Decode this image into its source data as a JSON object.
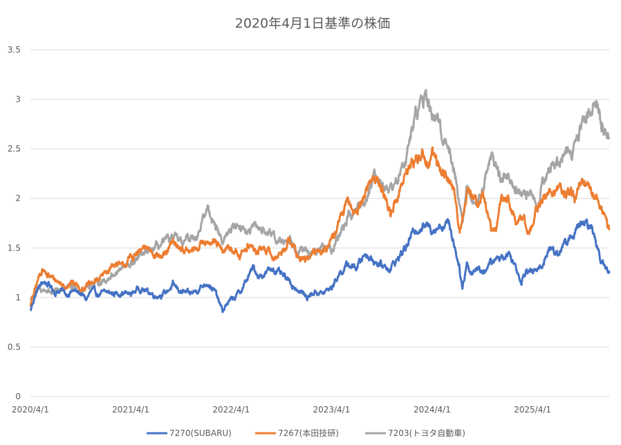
{
  "chart_data": {
    "type": "line",
    "title": "2020年4月1日基準の株価",
    "xlabel": "",
    "ylabel": "",
    "ylim": [
      0,
      3.5
    ],
    "y_ticks": [
      "0",
      "0.5",
      "1",
      "1.5",
      "2",
      "2.5",
      "3",
      "3.5"
    ],
    "x_ticks": [
      "2020/4/1",
      "2021/4/1",
      "2022/4/1",
      "2023/4/1",
      "2024/4/1",
      "2025/4/1"
    ],
    "x_range": [
      "2020/4/1",
      "2026/1/5"
    ],
    "grid": true,
    "legend": "bottom",
    "series": [
      {
        "name": "7270(SUBARU)",
        "color": "#4472c4",
        "points": [
          [
            "2020/4/1",
            0.86
          ],
          [
            "2020/4/15",
            1.0
          ],
          [
            "2020/5/1",
            1.1
          ],
          [
            "2020/5/20",
            1.16
          ],
          [
            "2020/6/10",
            1.12
          ],
          [
            "2020/7/1",
            1.05
          ],
          [
            "2020/7/20",
            1.08
          ],
          [
            "2020/8/10",
            1.03
          ],
          [
            "2020/9/1",
            1.07
          ],
          [
            "2020/10/1",
            1.04
          ],
          [
            "2020/10/20",
            0.98
          ],
          [
            "2020/11/10",
            1.07
          ],
          [
            "2020/12/1",
            1.03
          ],
          [
            "2021/1/5",
            1.05
          ],
          [
            "2021/2/1",
            1.04
          ],
          [
            "2021/3/1",
            1.05
          ],
          [
            "2021/4/1",
            1.03
          ],
          [
            "2021/5/1",
            1.1
          ],
          [
            "2021/6/1",
            1.06
          ],
          [
            "2021/7/1",
            1.02
          ],
          [
            "2021/8/1",
            1.04
          ],
          [
            "2021/9/1",
            1.12
          ],
          [
            "2021/10/1",
            1.06
          ],
          [
            "2021/11/1",
            1.03
          ],
          [
            "2021/12/1",
            1.08
          ],
          [
            "2022/1/5",
            1.16
          ],
          [
            "2022/2/1",
            1.06
          ],
          [
            "2022/3/1",
            0.86
          ],
          [
            "2022/3/20",
            0.95
          ],
          [
            "2022/4/15",
            1.0
          ],
          [
            "2022/5/10",
            1.08
          ],
          [
            "2022/6/1",
            1.2
          ],
          [
            "2022/6/20",
            1.3
          ],
          [
            "2022/7/10",
            1.22
          ],
          [
            "2022/8/1",
            1.24
          ],
          [
            "2022/9/1",
            1.3
          ],
          [
            "2022/9/20",
            1.25
          ],
          [
            "2022/10/10",
            1.2
          ],
          [
            "2022/11/1",
            1.15
          ],
          [
            "2022/11/20",
            1.1
          ],
          [
            "2022/12/10",
            1.06
          ],
          [
            "2023/1/1",
            1.0
          ],
          [
            "2023/2/1",
            1.06
          ],
          [
            "2023/3/1",
            1.04
          ],
          [
            "2023/4/1",
            1.1
          ],
          [
            "2023/5/1",
            1.25
          ],
          [
            "2023/6/1",
            1.33
          ],
          [
            "2023/7/1",
            1.3
          ],
          [
            "2023/8/1",
            1.45
          ],
          [
            "2023/9/1",
            1.38
          ],
          [
            "2023/10/1",
            1.32
          ],
          [
            "2023/11/1",
            1.3
          ],
          [
            "2023/12/1",
            1.4
          ],
          [
            "2024/1/5",
            1.55
          ],
          [
            "2024/2/1",
            1.7
          ],
          [
            "2024/3/1",
            1.72
          ],
          [
            "2024/4/1",
            1.7
          ],
          [
            "2024/5/1",
            1.73
          ],
          [
            "2024/6/1",
            1.75
          ],
          [
            "2024/6/20",
            1.55
          ],
          [
            "2024/7/10",
            1.3
          ],
          [
            "2024/7/20",
            1.1
          ],
          [
            "2024/8/5",
            1.35
          ],
          [
            "2024/8/20",
            1.25
          ],
          [
            "2024/9/10",
            1.3
          ],
          [
            "2024/10/1",
            1.26
          ],
          [
            "2024/11/1",
            1.35
          ],
          [
            "2024/12/1",
            1.4
          ],
          [
            "2025/1/5",
            1.45
          ],
          [
            "2025/2/1",
            1.3
          ],
          [
            "2025/2/20",
            1.17
          ],
          [
            "2025/3/10",
            1.3
          ],
          [
            "2025/4/1",
            1.25
          ],
          [
            "2025/5/1",
            1.3
          ],
          [
            "2025/6/1",
            1.5
          ],
          [
            "2025/7/1",
            1.45
          ],
          [
            "2025/8/1",
            1.55
          ],
          [
            "2025/9/1",
            1.65
          ],
          [
            "2025/10/1",
            1.75
          ],
          [
            "2025/11/1",
            1.7
          ],
          [
            "2025/12/1",
            1.45
          ],
          [
            "2025/12/20",
            1.3
          ],
          [
            "2026/1/5",
            1.25
          ]
        ]
      },
      {
        "name": "7267(本田技研)",
        "color": "#ed7d31",
        "points": [
          [
            "2020/4/1",
            0.92
          ],
          [
            "2020/4/15",
            1.05
          ],
          [
            "2020/5/1",
            1.2
          ],
          [
            "2020/5/15",
            1.3
          ],
          [
            "2020/6/1",
            1.22
          ],
          [
            "2020/7/1",
            1.18
          ],
          [
            "2020/8/1",
            1.12
          ],
          [
            "2020/9/1",
            1.15
          ],
          [
            "2020/10/1",
            1.1
          ],
          [
            "2020/11/1",
            1.12
          ],
          [
            "2020/12/1",
            1.18
          ],
          [
            "2021/1/1",
            1.25
          ],
          [
            "2021/2/1",
            1.35
          ],
          [
            "2021/3/1",
            1.3
          ],
          [
            "2021/4/1",
            1.4
          ],
          [
            "2021/5/1",
            1.45
          ],
          [
            "2021/6/1",
            1.5
          ],
          [
            "2021/7/1",
            1.45
          ],
          [
            "2021/8/1",
            1.4
          ],
          [
            "2021/9/1",
            1.55
          ],
          [
            "2021/10/1",
            1.5
          ],
          [
            "2021/11/1",
            1.45
          ],
          [
            "2021/12/1",
            1.5
          ],
          [
            "2022/1/5",
            1.6
          ],
          [
            "2022/2/1",
            1.55
          ],
          [
            "2022/3/1",
            1.45
          ],
          [
            "2022/4/1",
            1.5
          ],
          [
            "2022/5/1",
            1.4
          ],
          [
            "2022/6/1",
            1.55
          ],
          [
            "2022/7/1",
            1.45
          ],
          [
            "2022/8/1",
            1.5
          ],
          [
            "2022/9/1",
            1.4
          ],
          [
            "2022/10/1",
            1.45
          ],
          [
            "2022/11/1",
            1.6
          ],
          [
            "2022/12/1",
            1.4
          ],
          [
            "2023/1/1",
            1.38
          ],
          [
            "2023/2/1",
            1.45
          ],
          [
            "2023/3/1",
            1.5
          ],
          [
            "2023/4/1",
            1.55
          ],
          [
            "2023/5/1",
            1.8
          ],
          [
            "2023/6/1",
            1.95
          ],
          [
            "2023/7/1",
            1.85
          ],
          [
            "2023/8/1",
            2.05
          ],
          [
            "2023/9/1",
            2.25
          ],
          [
            "2023/10/1",
            2.1
          ],
          [
            "2023/11/1",
            1.85
          ],
          [
            "2023/12/1",
            2.05
          ],
          [
            "2024/1/5",
            2.3
          ],
          [
            "2024/2/1",
            2.4
          ],
          [
            "2024/3/1",
            2.45
          ],
          [
            "2024/3/20",
            2.35
          ],
          [
            "2024/4/1",
            2.45
          ],
          [
            "2024/5/1",
            2.3
          ],
          [
            "2024/6/1",
            2.2
          ],
          [
            "2024/6/20",
            2.05
          ],
          [
            "2024/7/10",
            1.7
          ],
          [
            "2024/8/5",
            2.0
          ],
          [
            "2024/8/20",
            2.05
          ],
          [
            "2024/9/10",
            1.95
          ],
          [
            "2024/10/1",
            2.05
          ],
          [
            "2024/11/1",
            1.7
          ],
          [
            "2024/11/20",
            1.65
          ],
          [
            "2024/12/10",
            2.05
          ],
          [
            "2025/1/5",
            1.95
          ],
          [
            "2025/2/1",
            1.75
          ],
          [
            "2025/3/1",
            1.8
          ],
          [
            "2025/3/20",
            1.65
          ],
          [
            "2025/4/10",
            1.85
          ],
          [
            "2025/5/1",
            1.95
          ],
          [
            "2025/6/1",
            2.05
          ],
          [
            "2025/7/1",
            2.1
          ],
          [
            "2025/8/1",
            2.05
          ],
          [
            "2025/9/1",
            2.0
          ],
          [
            "2025/10/1",
            2.15
          ],
          [
            "2025/11/1",
            2.05
          ],
          [
            "2025/12/1",
            2.0
          ],
          [
            "2025/12/20",
            1.8
          ],
          [
            "2026/1/5",
            1.68
          ]
        ]
      },
      {
        "name": "7203(トヨタ自動車)",
        "color": "#a5a5a5",
        "points": [
          [
            "2020/4/1",
            0.98
          ],
          [
            "2020/4/15",
            1.03
          ],
          [
            "2020/5/1",
            1.08
          ],
          [
            "2020/6/1",
            1.07
          ],
          [
            "2020/7/1",
            1.05
          ],
          [
            "2020/8/1",
            1.09
          ],
          [
            "2020/9/1",
            1.1
          ],
          [
            "2020/10/1",
            1.07
          ],
          [
            "2020/11/1",
            1.12
          ],
          [
            "2020/12/1",
            1.15
          ],
          [
            "2021/1/1",
            1.18
          ],
          [
            "2021/2/1",
            1.25
          ],
          [
            "2021/3/1",
            1.3
          ],
          [
            "2021/4/1",
            1.33
          ],
          [
            "2021/5/1",
            1.4
          ],
          [
            "2021/6/1",
            1.45
          ],
          [
            "2021/7/1",
            1.5
          ],
          [
            "2021/8/1",
            1.55
          ],
          [
            "2021/9/1",
            1.6
          ],
          [
            "2021/10/1",
            1.55
          ],
          [
            "2021/11/1",
            1.6
          ],
          [
            "2021/12/1",
            1.65
          ],
          [
            "2022/1/5",
            1.9
          ],
          [
            "2022/2/1",
            1.75
          ],
          [
            "2022/3/1",
            1.55
          ],
          [
            "2022/4/1",
            1.7
          ],
          [
            "2022/5/1",
            1.75
          ],
          [
            "2022/6/1",
            1.65
          ],
          [
            "2022/7/1",
            1.7
          ],
          [
            "2022/8/1",
            1.68
          ],
          [
            "2022/9/1",
            1.6
          ],
          [
            "2022/10/1",
            1.55
          ],
          [
            "2022/11/1",
            1.6
          ],
          [
            "2022/12/1",
            1.5
          ],
          [
            "2023/1/1",
            1.45
          ],
          [
            "2023/2/1",
            1.45
          ],
          [
            "2023/3/1",
            1.5
          ],
          [
            "2023/4/1",
            1.48
          ],
          [
            "2023/5/1",
            1.65
          ],
          [
            "2023/6/1",
            1.8
          ],
          [
            "2023/7/1",
            1.9
          ],
          [
            "2023/8/1",
            1.95
          ],
          [
            "2023/9/1",
            2.25
          ],
          [
            "2023/10/1",
            2.15
          ],
          [
            "2023/11/1",
            2.1
          ],
          [
            "2023/12/1",
            2.2
          ],
          [
            "2024/1/5",
            2.5
          ],
          [
            "2024/2/1",
            2.85
          ],
          [
            "2024/3/1",
            3.0
          ],
          [
            "2024/3/20",
            2.95
          ],
          [
            "2024/4/1",
            2.85
          ],
          [
            "2024/5/1",
            2.7
          ],
          [
            "2024/6/1",
            2.5
          ],
          [
            "2024/6/20",
            2.3
          ],
          [
            "2024/7/10",
            1.95
          ],
          [
            "2024/7/20",
            1.75
          ],
          [
            "2024/8/5",
            2.1
          ],
          [
            "2024/8/20",
            2.0
          ],
          [
            "2024/9/10",
            1.95
          ],
          [
            "2024/10/1",
            2.1
          ],
          [
            "2024/11/1",
            2.45
          ],
          [
            "2024/11/20",
            2.3
          ],
          [
            "2024/12/10",
            2.2
          ],
          [
            "2025/1/5",
            2.25
          ],
          [
            "2025/2/1",
            2.1
          ],
          [
            "2025/3/1",
            2.0
          ],
          [
            "2025/4/1",
            2.0
          ],
          [
            "2025/4/20",
            1.95
          ],
          [
            "2025/5/10",
            2.2
          ],
          [
            "2025/6/1",
            2.3
          ],
          [
            "2025/7/1",
            2.35
          ],
          [
            "2025/8/1",
            2.5
          ],
          [
            "2025/8/20",
            2.45
          ],
          [
            "2025/9/10",
            2.6
          ],
          [
            "2025/10/1",
            2.8
          ],
          [
            "2025/11/1",
            2.9
          ],
          [
            "2025/11/20",
            3.05
          ],
          [
            "2025/12/10",
            2.75
          ],
          [
            "2026/1/5",
            2.6
          ]
        ]
      }
    ]
  }
}
